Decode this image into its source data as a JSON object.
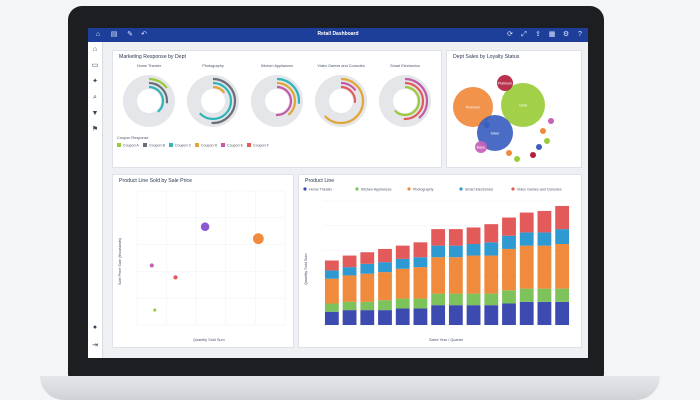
{
  "app": {
    "title": "Retail Dashboard"
  },
  "colors": {
    "accent": "#1d3f9a"
  },
  "toolbar_icons": [
    "chart-icon",
    "pencil-icon",
    "refresh-icon",
    "expand-icon",
    "share-icon",
    "grid-icon",
    "info-icon"
  ],
  "sidebar_icons": [
    "home-icon",
    "document-icon",
    "pin-icon",
    "search-icon",
    "settings-icon",
    "filter-icon"
  ],
  "marketing": {
    "title": "Marketing Response by Dept",
    "depts": [
      "Home Theater",
      "Photography",
      "Kitchen Appliances",
      "Video Games and Consoles",
      "Smart Electronics"
    ],
    "legend_title": "Coupon Response",
    "legend": [
      {
        "label": "Coupon A",
        "color": "#9bc93b"
      },
      {
        "label": "Coupon B",
        "color": "#6b6f7c"
      },
      {
        "label": "Coupon C",
        "color": "#2fb4b8"
      },
      {
        "label": "Coupon D",
        "color": "#e0a637"
      },
      {
        "label": "Coupon E",
        "color": "#c45aa7"
      },
      {
        "label": "Coupon F",
        "color": "#e25a5a"
      }
    ]
  },
  "loyalty": {
    "title": "Dept Sales by Loyalty Status",
    "bubbles": [
      {
        "label": "Premium",
        "color": "#f08a3c"
      },
      {
        "label": "Gold",
        "color": "#9acd3a"
      },
      {
        "label": "Silver",
        "color": "#3b5fbf"
      },
      {
        "label": "Platinum",
        "color": "#b31f3e"
      },
      {
        "label": "Basic",
        "color": "#c660b8"
      }
    ]
  },
  "scatter": {
    "title": "Product Line Sold by Sale Price",
    "xlabel": "Quantity Sold Sum",
    "ylabel": "Sale Price Sum (thousands)"
  },
  "productline": {
    "title": "Product Line",
    "xlabel": "Sales Year / Quarter",
    "ylabel": "Quantity Sold Sum",
    "legend": [
      {
        "label": "Home Theater",
        "color": "#3d4ab0"
      },
      {
        "label": "Kitchen Appliances",
        "color": "#7ec25b"
      },
      {
        "label": "Photography",
        "color": "#f08a3c"
      },
      {
        "label": "Smart Electronics",
        "color": "#2e9ad1"
      },
      {
        "label": "Video Games and Consoles",
        "color": "#e25a5a"
      }
    ]
  },
  "chart_data": [
    {
      "type": "bar",
      "title": "Product Line",
      "categories": [
        "Q1",
        "Q2",
        "Q3",
        "Q4",
        "Q5",
        "Q6",
        "Q7",
        "Q8",
        "Q9",
        "Q10",
        "Q11",
        "Q12",
        "Q13",
        "Q14"
      ],
      "series": [
        {
          "name": "Home Theater",
          "values": [
            8,
            9,
            9,
            9,
            10,
            10,
            12,
            12,
            12,
            12,
            13,
            14,
            14,
            14
          ]
        },
        {
          "name": "Kitchen Appliances",
          "values": [
            5,
            5,
            5,
            6,
            6,
            6,
            7,
            7,
            7,
            7,
            8,
            8,
            8,
            8
          ]
        },
        {
          "name": "Photography",
          "values": [
            15,
            16,
            17,
            17,
            18,
            19,
            22,
            22,
            23,
            23,
            25,
            26,
            26,
            27
          ]
        },
        {
          "name": "Smart Electronics",
          "values": [
            5,
            5,
            6,
            6,
            6,
            6,
            7,
            7,
            7,
            8,
            8,
            8,
            8,
            9
          ]
        },
        {
          "name": "Video Games and Consoles",
          "values": [
            6,
            7,
            7,
            8,
            8,
            9,
            10,
            10,
            10,
            11,
            11,
            12,
            13,
            14
          ]
        }
      ],
      "ylim": [
        0,
        75
      ]
    },
    {
      "type": "scatter",
      "title": "Product Line Sold by Sale Price",
      "points": [
        {
          "x": 46,
          "y": 33,
          "size": 3,
          "color": "#8e5ad1"
        },
        {
          "x": 82,
          "y": 29,
          "size": 4,
          "color": "#f08a3c"
        },
        {
          "x": 10,
          "y": 20,
          "size": 1,
          "color": "#c660b8"
        },
        {
          "x": 26,
          "y": 16,
          "size": 1,
          "color": "#e25a5a"
        },
        {
          "x": 12,
          "y": 5,
          "size": 0.5,
          "color": "#9acd3a"
        }
      ],
      "xlim": [
        0,
        100
      ],
      "ylim": [
        0,
        45
      ]
    }
  ]
}
